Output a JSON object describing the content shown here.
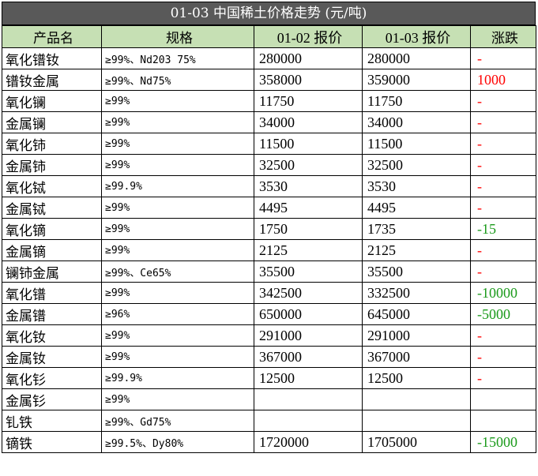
{
  "title": "01-03 中国稀土价格走势 (元/吨)",
  "headers": [
    "产品名",
    "规格",
    "01-02 报价",
    "01-03 报价",
    "涨跌"
  ],
  "rows": [
    {
      "name": "氧化镨钕",
      "spec": "≥99%、Nd203 75%",
      "prev": "280000",
      "curr": "280000",
      "change": "-",
      "trend": "flat"
    },
    {
      "name": "镨钕金属",
      "spec": "≥99%、Nd75%",
      "prev": "358000",
      "curr": "359000",
      "change": "1000",
      "trend": "up"
    },
    {
      "name": "氧化镧",
      "spec": "≥99%",
      "prev": "11750",
      "curr": "11750",
      "change": "-",
      "trend": "flat"
    },
    {
      "name": "金属镧",
      "spec": "≥99%",
      "prev": "34000",
      "curr": "34000",
      "change": "-",
      "trend": "flat"
    },
    {
      "name": "氧化铈",
      "spec": "≥99%",
      "prev": "11500",
      "curr": "11500",
      "change": "-",
      "trend": "flat"
    },
    {
      "name": "金属铈",
      "spec": "≥99%",
      "prev": "32500",
      "curr": "32500",
      "change": "-",
      "trend": "flat"
    },
    {
      "name": "氧化铽",
      "spec": "≥99.9%",
      "prev": "3530",
      "curr": "3530",
      "change": "-",
      "trend": "flat"
    },
    {
      "name": "金属铽",
      "spec": "≥99%",
      "prev": "4495",
      "curr": "4495",
      "change": "-",
      "trend": "flat"
    },
    {
      "name": "氧化镝",
      "spec": "≥99%",
      "prev": "1750",
      "curr": "1735",
      "change": "-15",
      "trend": "down"
    },
    {
      "name": "金属镝",
      "spec": "≥99%",
      "prev": "2125",
      "curr": "2125",
      "change": "-",
      "trend": "flat"
    },
    {
      "name": "镧铈金属",
      "spec": "≥99%、Ce65%",
      "prev": "35500",
      "curr": "35500",
      "change": "-",
      "trend": "flat"
    },
    {
      "name": "氧化镨",
      "spec": "≥99%",
      "prev": "342500",
      "curr": "332500",
      "change": "-10000",
      "trend": "down"
    },
    {
      "name": "金属镨",
      "spec": "≥96%",
      "prev": "650000",
      "curr": "645000",
      "change": "-5000",
      "trend": "down"
    },
    {
      "name": "氧化钕",
      "spec": "≥99%",
      "prev": "291000",
      "curr": "291000",
      "change": "-",
      "trend": "flat"
    },
    {
      "name": "金属钕",
      "spec": "≥99%",
      "prev": "367000",
      "curr": "367000",
      "change": "-",
      "trend": "flat"
    },
    {
      "name": "氧化钐",
      "spec": "≥99.9%",
      "prev": "12500",
      "curr": "12500",
      "change": "-",
      "trend": "flat"
    },
    {
      "name": "金属钐",
      "spec": "≥99%",
      "prev": "",
      "curr": "",
      "change": "",
      "trend": "flat"
    },
    {
      "name": "钆铁",
      "spec": "≥99%、Gd75%",
      "prev": "",
      "curr": "",
      "change": "",
      "trend": "flat"
    },
    {
      "name": "镝铁",
      "spec": "≥99.5%、Dy80%",
      "prev": "1720000",
      "curr": "1705000",
      "change": "-15000",
      "trend": "down"
    }
  ],
  "colors": {
    "header_bg": "#c6e0b4",
    "title_bg": "#595959",
    "up": "#ff0000",
    "down": "#1a9a1a"
  }
}
